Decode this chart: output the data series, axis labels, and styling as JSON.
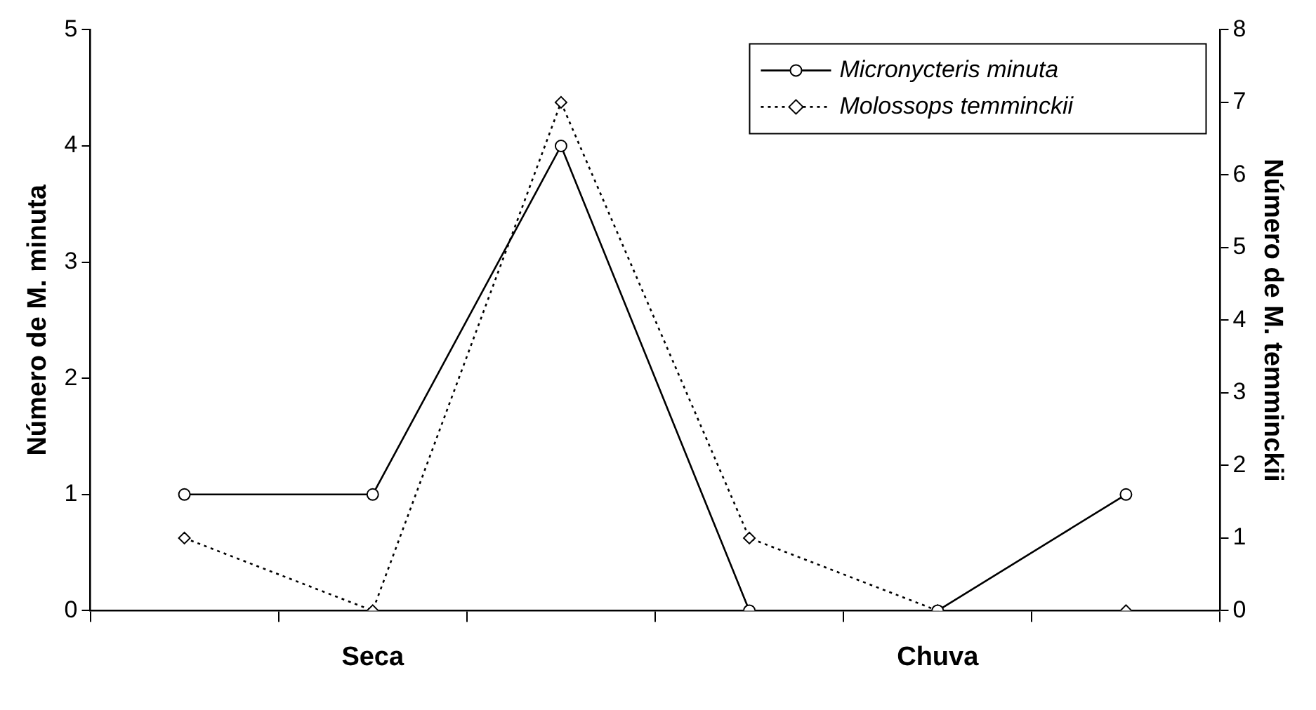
{
  "chart_data": {
    "type": "line",
    "categories": [
      null,
      "Seca",
      null,
      null,
      "Chuva",
      null
    ],
    "ylabel": "Número de M. minuta",
    "y2label": "Número de M. temminckii",
    "ylim": [
      0,
      5
    ],
    "yticks": [
      0,
      1,
      2,
      3,
      4,
      5
    ],
    "y2lim": [
      0,
      8
    ],
    "y2ticks": [
      0,
      1,
      2,
      3,
      4,
      5,
      6,
      7,
      8
    ],
    "grid": false,
    "legend": "top right",
    "series": [
      {
        "name": "Micronycteris minuta",
        "color": "#000000",
        "values": [
          1,
          1,
          4,
          0,
          0,
          1
        ],
        "marker": "circle",
        "line_style": "solid"
      },
      {
        "name": "Molossops temminckii",
        "color": "#000000",
        "values": [
          1,
          0,
          7,
          1,
          0,
          0
        ],
        "axis": "y2",
        "marker": "diamond",
        "line_style": "dotted"
      }
    ]
  }
}
